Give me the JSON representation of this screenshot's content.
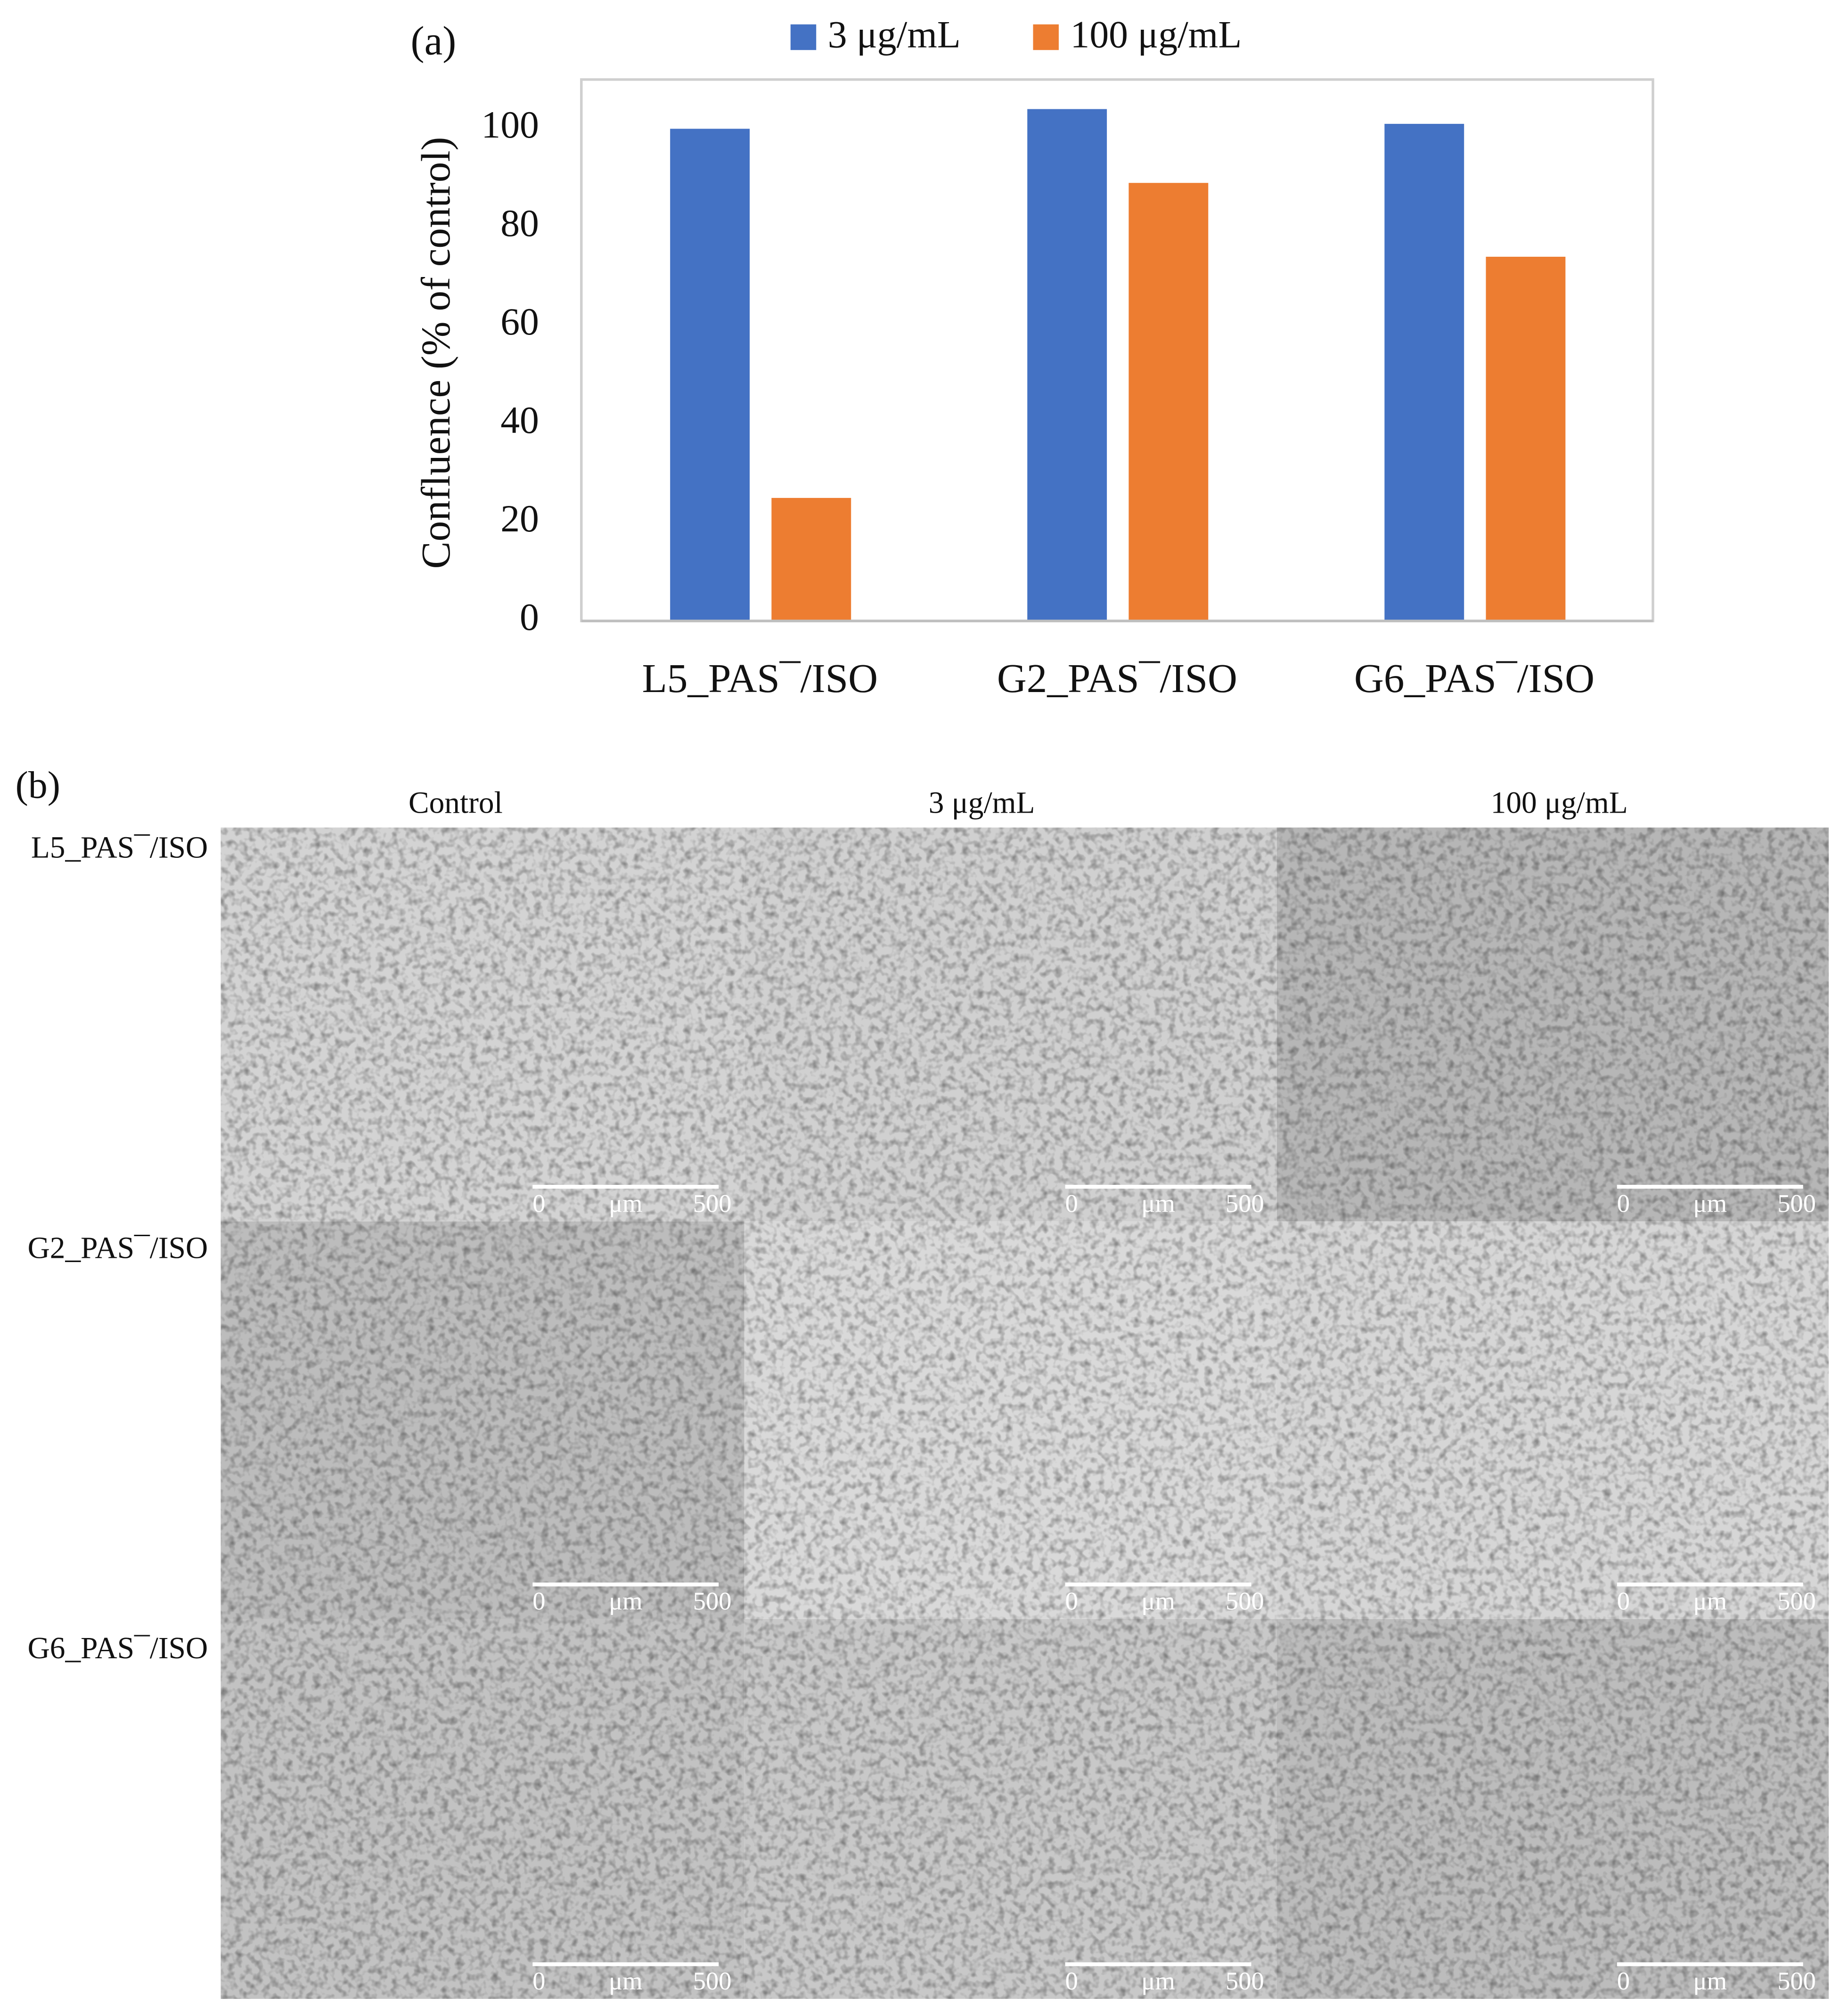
{
  "chart_data": {
    "type": "bar",
    "panel_label": "(a)",
    "y_label": "Confluence (% of control)",
    "categories": [
      "L5_PAS¯/ISO",
      "G2_PAS¯/ISO",
      "G6_PAS¯/ISO"
    ],
    "series": [
      {
        "name": "3 μg/mL",
        "color": "#4472c4",
        "values": [
          100,
          104,
          101
        ]
      },
      {
        "name": "100 μg/mL",
        "color": "#ed7d31",
        "values": [
          25,
          89,
          74
        ]
      }
    ],
    "ylim": [
      0,
      110
    ],
    "yticks": [
      0,
      20,
      40,
      60,
      80,
      100
    ],
    "grid": false,
    "legend": "top"
  },
  "panel_b": {
    "panel_label": "(b)",
    "columns": [
      "Control",
      "3 μg/mL",
      "100 μg/mL"
    ],
    "rows": [
      "L5_PAS¯/ISO",
      "G2_PAS¯/ISO",
      "G6_PAS¯/ISO"
    ],
    "scale_bar": {
      "start": "0",
      "unit": "μm",
      "end": "500"
    }
  }
}
